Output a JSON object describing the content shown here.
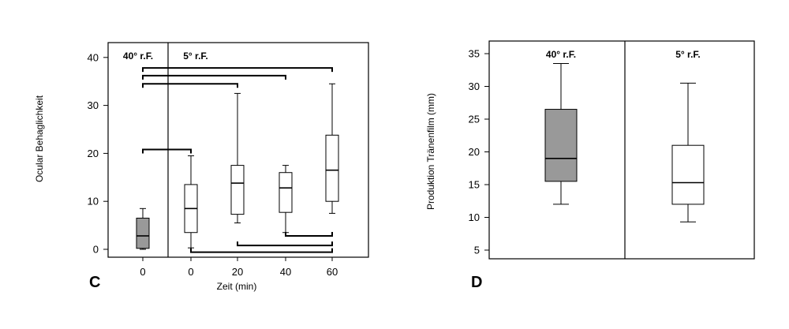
{
  "chart_data": [
    {
      "type": "boxplot",
      "panel_label": "C",
      "xlabel": "Zeit (min)",
      "ylabel": "Ocular Behaglichkeit",
      "ylim": [
        -2,
        42
      ],
      "yticks": [
        0,
        10,
        20,
        30,
        40
      ],
      "conditions": [
        "40° r.F.",
        "5° r.F."
      ],
      "colors": {
        "shaded": "#999999",
        "open": "#ffffff"
      },
      "boxes": [
        {
          "category": "0",
          "condition": "40° r.F.",
          "shaded": true,
          "min": 0,
          "q1": 0.2,
          "median": 2.8,
          "q3": 6.5,
          "max": 8.5
        },
        {
          "category": "0",
          "condition": "5° r.F.",
          "shaded": false,
          "min": 0.3,
          "q1": 3.5,
          "median": 8.5,
          "q3": 13.5,
          "max": 19.5
        },
        {
          "category": "20",
          "condition": "5° r.F.",
          "shaded": false,
          "min": 5.5,
          "q1": 7.3,
          "median": 13.8,
          "q3": 17.5,
          "max": 32.5
        },
        {
          "category": "40",
          "condition": "5° r.F.",
          "shaded": false,
          "min": 3.5,
          "q1": 7.7,
          "median": 12.8,
          "q3": 16.0,
          "max": 17.5
        },
        {
          "category": "60",
          "condition": "5° r.F.",
          "shaded": false,
          "min": 7.5,
          "q1": 10.0,
          "median": 16.5,
          "q3": 23.8,
          "max": 34.5
        }
      ],
      "brackets": [
        {
          "from": 0,
          "to": 4,
          "y": 37.8,
          "dir": "down"
        },
        {
          "from": 0,
          "to": 3,
          "y": 36.2,
          "dir": "down"
        },
        {
          "from": 0,
          "to": 2,
          "y": 34.5,
          "dir": "down"
        },
        {
          "from": 0,
          "to": 1,
          "y": 20.8,
          "dir": "down"
        },
        {
          "from": 3,
          "to": 4,
          "y": 2.8,
          "dir": "up"
        },
        {
          "from": 2,
          "to": 4,
          "y": 0.8,
          "dir": "up"
        },
        {
          "from": 1,
          "to": 4,
          "y": -0.6,
          "dir": "up"
        }
      ]
    },
    {
      "type": "boxplot",
      "panel_label": "D",
      "xlabel": "",
      "ylabel": "Produktion Tränenfilm (mm)",
      "ylim": [
        3,
        37
      ],
      "yticks": [
        5,
        10,
        15,
        20,
        25,
        30,
        35
      ],
      "conditions": [
        "40° r.F.",
        "5° r.F."
      ],
      "colors": {
        "shaded": "#999999",
        "open": "#ffffff"
      },
      "boxes": [
        {
          "condition": "40° r.F.",
          "shaded": true,
          "min": 12.0,
          "q1": 15.5,
          "median": 19.0,
          "q3": 26.5,
          "max": 33.5
        },
        {
          "condition": "5° r.F.",
          "shaded": false,
          "min": 9.3,
          "q1": 12.0,
          "median": 15.3,
          "q3": 21.0,
          "max": 30.5
        }
      ]
    }
  ]
}
